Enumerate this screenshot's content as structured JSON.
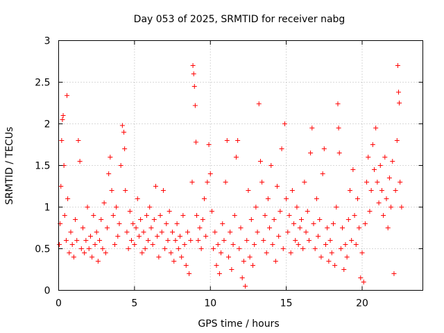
{
  "chart_data": {
    "type": "scatter",
    "title": "Day 053 of 2025, SRMTID for receiver nabg",
    "xlabel": "GPS time / hours",
    "ylabel": "SRMTID / TECUs",
    "xlim": [
      0,
      24
    ],
    "ylim": [
      0,
      3
    ],
    "xticks": [
      0,
      5,
      10,
      15,
      20
    ],
    "xtick_labels": [
      "0",
      "5",
      "10",
      "15",
      "20"
    ],
    "yticks": [
      0,
      0.5,
      1,
      1.5,
      2,
      2.5,
      3
    ],
    "ytick_labels": [
      "0",
      "0.5",
      "1",
      "1.5",
      "2",
      "2.5",
      "3"
    ],
    "grid": true,
    "marker": "+",
    "series": [
      {
        "name": "SRMTID",
        "color": "#ff0000",
        "points": [
          [
            0.05,
            0.55
          ],
          [
            0.1,
            0.8
          ],
          [
            0.15,
            1.25
          ],
          [
            0.2,
            1.8
          ],
          [
            0.25,
            2.05
          ],
          [
            0.3,
            2.1
          ],
          [
            0.35,
            1.5
          ],
          [
            0.4,
            0.9
          ],
          [
            0.5,
            0.6
          ],
          [
            0.55,
            2.34
          ],
          [
            0.6,
            1.1
          ],
          [
            0.7,
            0.45
          ],
          [
            0.8,
            0.7
          ],
          [
            0.9,
            0.55
          ],
          [
            1.0,
            0.4
          ],
          [
            1.1,
            0.85
          ],
          [
            1.2,
            0.6
          ],
          [
            1.3,
            1.8
          ],
          [
            1.4,
            1.55
          ],
          [
            1.5,
            0.5
          ],
          [
            1.6,
            0.75
          ],
          [
            1.7,
            0.45
          ],
          [
            1.8,
            0.6
          ],
          [
            1.9,
            1.0
          ],
          [
            2.0,
            0.5
          ],
          [
            2.1,
            0.65
          ],
          [
            2.2,
            0.4
          ],
          [
            2.3,
            0.9
          ],
          [
            2.4,
            0.55
          ],
          [
            2.5,
            0.7
          ],
          [
            2.6,
            0.35
          ],
          [
            2.7,
            0.6
          ],
          [
            2.8,
            0.85
          ],
          [
            2.9,
            0.5
          ],
          [
            3.0,
            1.05
          ],
          [
            3.1,
            0.45
          ],
          [
            3.2,
            0.75
          ],
          [
            3.3,
            1.4
          ],
          [
            3.4,
            1.6
          ],
          [
            3.5,
            1.2
          ],
          [
            3.6,
            0.9
          ],
          [
            3.7,
            0.55
          ],
          [
            3.8,
            1.0
          ],
          [
            3.9,
            0.65
          ],
          [
            4.0,
            0.8
          ],
          [
            4.1,
            1.5
          ],
          [
            4.2,
            1.98
          ],
          [
            4.3,
            1.9
          ],
          [
            4.35,
            1.7
          ],
          [
            4.4,
            1.2
          ],
          [
            4.5,
            0.7
          ],
          [
            4.6,
            0.5
          ],
          [
            4.7,
            0.95
          ],
          [
            4.8,
            0.6
          ],
          [
            4.9,
            0.8
          ],
          [
            5.0,
            0.55
          ],
          [
            5.1,
            0.75
          ],
          [
            5.2,
            1.1
          ],
          [
            5.3,
            0.65
          ],
          [
            5.4,
            0.85
          ],
          [
            5.5,
            0.45
          ],
          [
            5.6,
            0.7
          ],
          [
            5.7,
            0.5
          ],
          [
            5.8,
            0.9
          ],
          [
            5.9,
            0.6
          ],
          [
            6.0,
            1.0
          ],
          [
            6.1,
            0.75
          ],
          [
            6.2,
            0.55
          ],
          [
            6.3,
            0.85
          ],
          [
            6.4,
            1.25
          ],
          [
            6.5,
            0.65
          ],
          [
            6.6,
            0.4
          ],
          [
            6.7,
            0.9
          ],
          [
            6.8,
            0.7
          ],
          [
            6.9,
            1.2
          ],
          [
            7.0,
            0.5
          ],
          [
            7.1,
            0.8
          ],
          [
            7.2,
            0.6
          ],
          [
            7.3,
            0.95
          ],
          [
            7.4,
            0.45
          ],
          [
            7.5,
            0.7
          ],
          [
            7.6,
            0.35
          ],
          [
            7.7,
            0.6
          ],
          [
            7.8,
            0.8
          ],
          [
            7.9,
            0.5
          ],
          [
            8.0,
            0.65
          ],
          [
            8.1,
            0.4
          ],
          [
            8.2,
            0.9
          ],
          [
            8.3,
            0.55
          ],
          [
            8.4,
            0.3
          ],
          [
            8.5,
            0.7
          ],
          [
            8.6,
            0.2
          ],
          [
            8.7,
            0.6
          ],
          [
            8.8,
            1.3
          ],
          [
            8.85,
            2.7
          ],
          [
            8.9,
            2.6
          ],
          [
            8.95,
            2.45
          ],
          [
            9.0,
            2.22
          ],
          [
            9.05,
            1.78
          ],
          [
            9.1,
            0.9
          ],
          [
            9.2,
            0.6
          ],
          [
            9.3,
            0.75
          ],
          [
            9.4,
            0.5
          ],
          [
            9.5,
            0.85
          ],
          [
            9.6,
            1.1
          ],
          [
            9.7,
            0.65
          ],
          [
            9.8,
            1.3
          ],
          [
            9.9,
            1.75
          ],
          [
            10.0,
            1.4
          ],
          [
            10.1,
            0.95
          ],
          [
            10.2,
            0.5
          ],
          [
            10.3,
            0.7
          ],
          [
            10.4,
            0.3
          ],
          [
            10.5,
            0.55
          ],
          [
            10.6,
            0.2
          ],
          [
            10.7,
            0.45
          ],
          [
            10.8,
            0.8
          ],
          [
            10.9,
            0.6
          ],
          [
            11.0,
            1.3
          ],
          [
            11.1,
            1.8
          ],
          [
            11.2,
            0.4
          ],
          [
            11.3,
            0.7
          ],
          [
            11.4,
            0.25
          ],
          [
            11.5,
            0.55
          ],
          [
            11.6,
            0.9
          ],
          [
            11.7,
            1.6
          ],
          [
            11.8,
            1.8
          ],
          [
            11.9,
            0.5
          ],
          [
            12.0,
            0.75
          ],
          [
            12.1,
            0.15
          ],
          [
            12.2,
            0.35
          ],
          [
            12.3,
            0.05
          ],
          [
            12.4,
            0.6
          ],
          [
            12.5,
            1.2
          ],
          [
            12.6,
            0.4
          ],
          [
            12.7,
            0.85
          ],
          [
            12.8,
            0.3
          ],
          [
            12.9,
            0.55
          ],
          [
            13.0,
            1.0
          ],
          [
            13.1,
            0.7
          ],
          [
            13.2,
            2.24
          ],
          [
            13.3,
            1.55
          ],
          [
            13.4,
            1.3
          ],
          [
            13.5,
            0.6
          ],
          [
            13.6,
            0.9
          ],
          [
            13.7,
            0.45
          ],
          [
            13.8,
            1.1
          ],
          [
            13.9,
            0.75
          ],
          [
            14.0,
            1.5
          ],
          [
            14.1,
            0.55
          ],
          [
            14.2,
            0.85
          ],
          [
            14.3,
            0.35
          ],
          [
            14.4,
            1.25
          ],
          [
            14.5,
            0.65
          ],
          [
            14.6,
            0.95
          ],
          [
            14.7,
            1.7
          ],
          [
            14.8,
            0.5
          ],
          [
            14.9,
            2.0
          ],
          [
            15.0,
            1.1
          ],
          [
            15.1,
            0.7
          ],
          [
            15.2,
            0.9
          ],
          [
            15.3,
            0.45
          ],
          [
            15.4,
            1.2
          ],
          [
            15.5,
            0.8
          ],
          [
            15.6,
            0.6
          ],
          [
            15.7,
            1.0
          ],
          [
            15.8,
            0.55
          ],
          [
            15.9,
            0.75
          ],
          [
            16.0,
            0.85
          ],
          [
            16.1,
            0.5
          ],
          [
            16.2,
            1.3
          ],
          [
            16.3,
            0.7
          ],
          [
            16.4,
            0.95
          ],
          [
            16.5,
            0.6
          ],
          [
            16.6,
            1.65
          ],
          [
            16.7,
            1.95
          ],
          [
            16.8,
            0.8
          ],
          [
            16.9,
            0.5
          ],
          [
            17.0,
            1.1
          ],
          [
            17.1,
            0.65
          ],
          [
            17.2,
            0.85
          ],
          [
            17.3,
            0.4
          ],
          [
            17.4,
            1.4
          ],
          [
            17.5,
            1.7
          ],
          [
            17.6,
            0.55
          ],
          [
            17.7,
            0.75
          ],
          [
            17.8,
            0.35
          ],
          [
            17.9,
            0.6
          ],
          [
            18.0,
            0.45
          ],
          [
            18.1,
            0.8
          ],
          [
            18.2,
            0.3
          ],
          [
            18.3,
            1.0
          ],
          [
            18.4,
            2.24
          ],
          [
            18.45,
            1.95
          ],
          [
            18.5,
            1.65
          ],
          [
            18.6,
            0.5
          ],
          [
            18.7,
            0.75
          ],
          [
            18.8,
            0.25
          ],
          [
            18.9,
            0.55
          ],
          [
            19.0,
            0.4
          ],
          [
            19.1,
            0.85
          ],
          [
            19.2,
            1.2
          ],
          [
            19.3,
            0.6
          ],
          [
            19.4,
            1.45
          ],
          [
            19.5,
            0.9
          ],
          [
            19.6,
            0.55
          ],
          [
            19.7,
            1.1
          ],
          [
            19.8,
            0.75
          ],
          [
            19.9,
            0.15
          ],
          [
            20.0,
            0.45
          ],
          [
            20.1,
            0.1
          ],
          [
            20.2,
            0.8
          ],
          [
            20.3,
            1.3
          ],
          [
            20.4,
            1.6
          ],
          [
            20.5,
            0.95
          ],
          [
            20.6,
            1.2
          ],
          [
            20.7,
            1.75
          ],
          [
            20.8,
            1.45
          ],
          [
            20.9,
            1.95
          ],
          [
            21.0,
            1.3
          ],
          [
            21.1,
            1.05
          ],
          [
            21.2,
            1.5
          ],
          [
            21.3,
            1.2
          ],
          [
            21.4,
            0.9
          ],
          [
            21.5,
            1.6
          ],
          [
            21.6,
            1.1
          ],
          [
            21.7,
            0.75
          ],
          [
            21.8,
            1.35
          ],
          [
            21.9,
            1.0
          ],
          [
            22.0,
            1.55
          ],
          [
            22.1,
            0.2
          ],
          [
            22.2,
            1.2
          ],
          [
            22.3,
            1.8
          ],
          [
            22.35,
            2.7
          ],
          [
            22.4,
            2.38
          ],
          [
            22.45,
            2.25
          ],
          [
            22.5,
            1.3
          ],
          [
            22.6,
            1.0
          ]
        ]
      }
    ]
  }
}
